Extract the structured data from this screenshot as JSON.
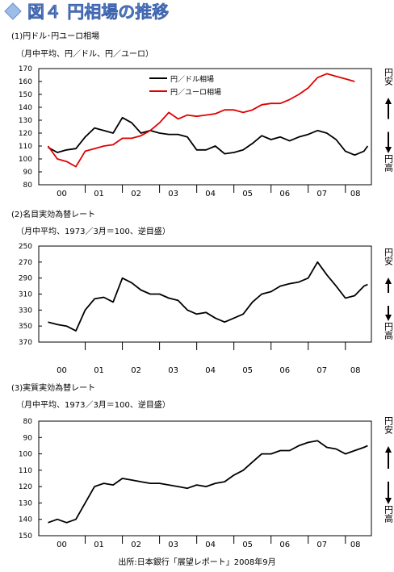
{
  "title": "図４ 円相場の推移",
  "source": "出所:日本銀行「展望レポート」2008年9月",
  "chart_data": [
    {
      "type": "line",
      "title": "(1)円ドル･円ユーロ相場",
      "subtitle": "（月中平均、円／ドル、円／ユーロ）",
      "x_ticks": [
        "00",
        "01",
        "02",
        "03",
        "04",
        "05",
        "06",
        "07",
        "08"
      ],
      "ylim": [
        80,
        170
      ],
      "y_ticks": [
        80,
        90,
        100,
        110,
        120,
        130,
        140,
        150,
        160,
        170
      ],
      "inverted": false,
      "side_top": "円安",
      "side_bottom": "円高",
      "legend_position": "top-center",
      "series": [
        {
          "name": "円／ドル相場",
          "color": "#000000",
          "x": [
            2000.0,
            2000.25,
            2000.5,
            2000.75,
            2001.0,
            2001.25,
            2001.5,
            2001.75,
            2002.0,
            2002.25,
            2002.5,
            2002.75,
            2003.0,
            2003.25,
            2003.5,
            2003.75,
            2004.0,
            2004.25,
            2004.5,
            2004.75,
            2005.0,
            2005.25,
            2005.5,
            2005.75,
            2006.0,
            2006.25,
            2006.5,
            2006.75,
            2007.0,
            2007.25,
            2007.5,
            2007.75,
            2008.0,
            2008.25,
            2008.5,
            2008.6
          ],
          "y": [
            109,
            105,
            107,
            108,
            117,
            124,
            122,
            120,
            132,
            128,
            120,
            122,
            120,
            119,
            119,
            117,
            107,
            107,
            110,
            104,
            105,
            107,
            112,
            118,
            115,
            117,
            114,
            117,
            119,
            122,
            120,
            115,
            106,
            103,
            106,
            110
          ]
        },
        {
          "name": "円／ユーロ相場",
          "color": "#e00000",
          "x": [
            2000.0,
            2000.25,
            2000.5,
            2000.75,
            2001.0,
            2001.25,
            2001.5,
            2001.75,
            2002.0,
            2002.25,
            2002.5,
            2002.75,
            2003.0,
            2003.25,
            2003.5,
            2003.75,
            2004.0,
            2004.25,
            2004.5,
            2004.75,
            2005.0,
            2005.25,
            2005.5,
            2005.75,
            2006.0,
            2006.25,
            2006.5,
            2006.75,
            2007.0,
            2007.25,
            2007.5,
            2007.75,
            2008.0,
            2008.25
          ],
          "y": [
            110,
            100,
            98,
            94,
            106,
            108,
            110,
            111,
            116,
            116,
            118,
            122,
            128,
            136,
            131,
            134,
            133,
            134,
            135,
            138,
            138,
            136,
            138,
            142,
            143,
            143,
            146,
            150,
            155,
            163,
            166,
            164,
            162,
            160
          ]
        }
      ]
    },
    {
      "type": "line",
      "title": "(2)名目実効為替レート",
      "subtitle": "（月中平均、1973／3月＝100、逆目盛）",
      "x_ticks": [
        "00",
        "01",
        "02",
        "03",
        "04",
        "05",
        "06",
        "07",
        "08"
      ],
      "ylim": [
        250,
        370
      ],
      "y_ticks": [
        250,
        270,
        290,
        310,
        330,
        350,
        370
      ],
      "inverted": true,
      "side_top": "円安",
      "side_bottom": "円高",
      "series": [
        {
          "name": "",
          "color": "#000000",
          "x": [
            2000.0,
            2000.25,
            2000.5,
            2000.75,
            2001.0,
            2001.25,
            2001.5,
            2001.75,
            2002.0,
            2002.25,
            2002.5,
            2002.75,
            2003.0,
            2003.25,
            2003.5,
            2003.75,
            2004.0,
            2004.25,
            2004.5,
            2004.75,
            2005.0,
            2005.25,
            2005.5,
            2005.75,
            2006.0,
            2006.25,
            2006.5,
            2006.75,
            2007.0,
            2007.25,
            2007.5,
            2007.75,
            2008.0,
            2008.25,
            2008.5,
            2008.6
          ],
          "y": [
            345,
            348,
            350,
            356,
            330,
            316,
            314,
            320,
            290,
            296,
            305,
            310,
            310,
            315,
            318,
            330,
            335,
            333,
            340,
            345,
            340,
            335,
            320,
            310,
            307,
            300,
            297,
            295,
            290,
            270,
            286,
            300,
            315,
            312,
            300,
            298
          ]
        }
      ]
    },
    {
      "type": "line",
      "title": "(3)実質実効為替レート",
      "subtitle": "（月中平均、1973／3月＝100、逆目盛）",
      "x_ticks": [
        "00",
        "01",
        "02",
        "03",
        "04",
        "05",
        "06",
        "07",
        "08"
      ],
      "ylim": [
        80,
        150
      ],
      "y_ticks": [
        80,
        90,
        100,
        110,
        120,
        130,
        140,
        150
      ],
      "inverted": true,
      "side_top": "円安",
      "side_bottom": "円高",
      "series": [
        {
          "name": "",
          "color": "#000000",
          "x": [
            2000.0,
            2000.25,
            2000.5,
            2000.75,
            2001.0,
            2001.25,
            2001.5,
            2001.75,
            2002.0,
            2002.25,
            2002.5,
            2002.75,
            2003.0,
            2003.25,
            2003.5,
            2003.75,
            2004.0,
            2004.25,
            2004.5,
            2004.75,
            2005.0,
            2005.25,
            2005.5,
            2005.75,
            2006.0,
            2006.25,
            2006.5,
            2006.75,
            2007.0,
            2007.25,
            2007.5,
            2007.75,
            2008.0,
            2008.25,
            2008.5,
            2008.6
          ],
          "y": [
            142,
            140,
            142,
            140,
            130,
            120,
            118,
            119,
            115,
            116,
            117,
            118,
            118,
            119,
            120,
            121,
            119,
            120,
            118,
            117,
            113,
            110,
            105,
            100,
            100,
            98,
            98,
            95,
            93,
            92,
            96,
            97,
            100,
            98,
            96,
            95
          ]
        }
      ]
    }
  ]
}
